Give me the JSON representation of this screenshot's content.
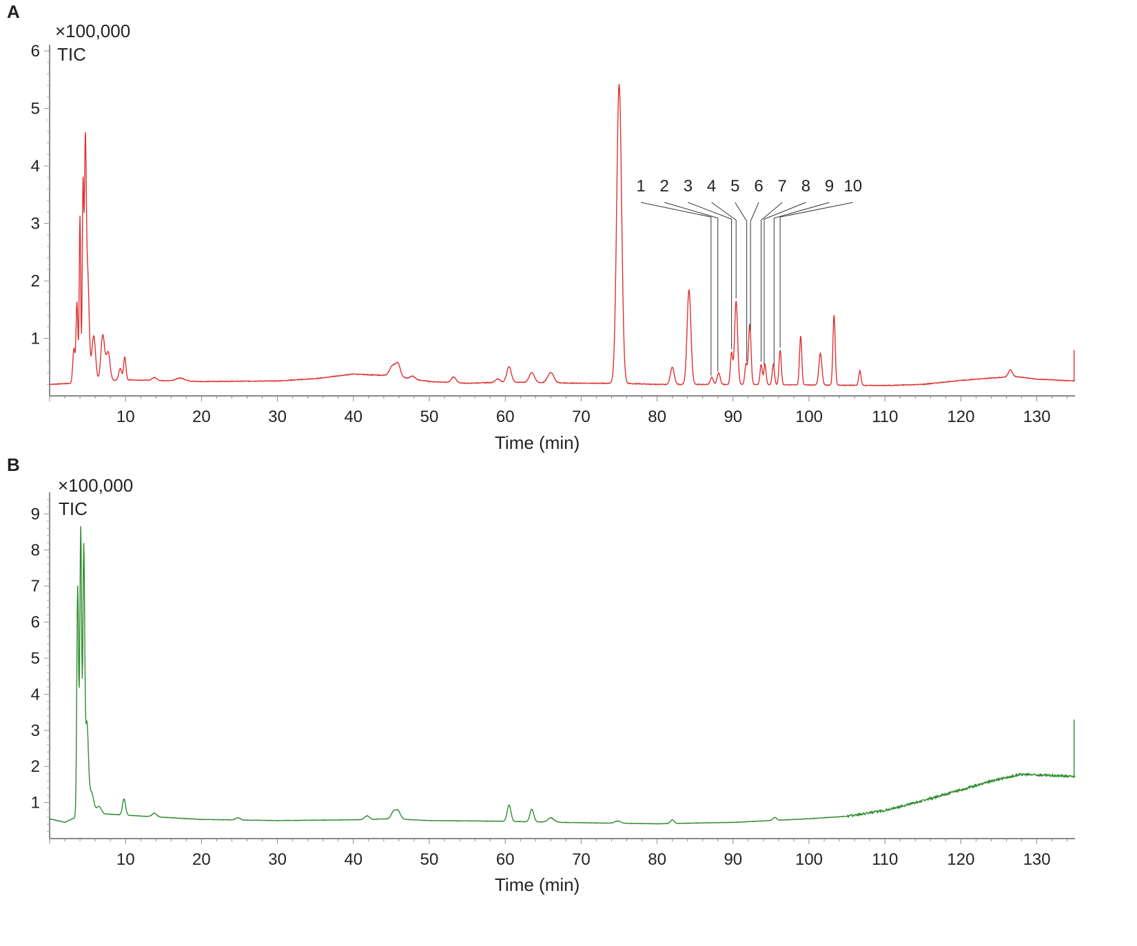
{
  "panels": [
    {
      "letter": "A",
      "scale_label": "×100,000",
      "trace_label": "TIC",
      "xlabel": "Time (min)"
    },
    {
      "letter": "B",
      "scale_label": "×100,000",
      "trace_label": "TIC",
      "xlabel": "Time (min)"
    }
  ],
  "chart_data": [
    {
      "type": "line",
      "panel": "A",
      "xlabel": "Time (min)",
      "ylabel": "×100,000",
      "xlim": [
        0,
        135
      ],
      "ylim": [
        0,
        6
      ],
      "x_ticks": [
        10,
        20,
        30,
        40,
        50,
        60,
        70,
        80,
        90,
        100,
        110,
        120,
        130
      ],
      "y_ticks": [
        1,
        2,
        3,
        4,
        5,
        6
      ],
      "grid": false,
      "color": "#e03030",
      "series": [
        {
          "baseline": [
            [
              0,
              0.2
            ],
            [
              3,
              0.22
            ],
            [
              10,
              0.28
            ],
            [
              20,
              0.25
            ],
            [
              30,
              0.26
            ],
            [
              35,
              0.3
            ],
            [
              40,
              0.38
            ],
            [
              45,
              0.35
            ],
            [
              50,
              0.25
            ],
            [
              55,
              0.22
            ],
            [
              60,
              0.24
            ],
            [
              70,
              0.22
            ],
            [
              75,
              0.22
            ],
            [
              80,
              0.2
            ],
            [
              90,
              0.2
            ],
            [
              100,
              0.19
            ],
            [
              110,
              0.18
            ],
            [
              115,
              0.2
            ],
            [
              120,
              0.27
            ],
            [
              127,
              0.34
            ],
            [
              130,
              0.29
            ],
            [
              135,
              0.26
            ]
          ],
          "peaks": [
            [
              3.2,
              0.6,
              0.15
            ],
            [
              3.6,
              1.4,
              0.12
            ],
            [
              4.0,
              2.9,
              0.1
            ],
            [
              4.4,
              3.4,
              0.1
            ],
            [
              4.7,
              3.7,
              0.12
            ],
            [
              5.0,
              1.9,
              0.2
            ],
            [
              5.8,
              0.8,
              0.25
            ],
            [
              7.0,
              0.8,
              0.25
            ],
            [
              7.7,
              0.5,
              0.25
            ],
            [
              9.3,
              0.2,
              0.2
            ],
            [
              9.9,
              0.4,
              0.15
            ],
            [
              13.8,
              0.05,
              0.3
            ],
            [
              17.2,
              0.05,
              0.6
            ],
            [
              45.2,
              0.18,
              0.4
            ],
            [
              45.9,
              0.2,
              0.3
            ],
            [
              47.8,
              0.05,
              0.3
            ],
            [
              53.2,
              0.1,
              0.3
            ],
            [
              59.0,
              0.06,
              0.3
            ],
            [
              60.5,
              0.27,
              0.3
            ],
            [
              63.5,
              0.17,
              0.35
            ],
            [
              66.0,
              0.18,
              0.4
            ],
            [
              75.0,
              5.2,
              0.32
            ],
            [
              82.0,
              0.3,
              0.25
            ],
            [
              84.2,
              1.65,
              0.25
            ],
            [
              87.2,
              0.12,
              0.2
            ],
            [
              88.1,
              0.2,
              0.2
            ],
            [
              89.8,
              0.55,
              0.15
            ],
            [
              90.4,
              1.45,
              0.2
            ],
            [
              91.7,
              0.35,
              0.15
            ],
            [
              92.2,
              1.05,
              0.17
            ],
            [
              93.7,
              0.35,
              0.15
            ],
            [
              94.2,
              0.35,
              0.15
            ],
            [
              95.3,
              0.35,
              0.15
            ],
            [
              96.2,
              0.6,
              0.15
            ],
            [
              98.9,
              0.85,
              0.15
            ],
            [
              101.5,
              0.55,
              0.2
            ],
            [
              103.3,
              1.22,
              0.15
            ],
            [
              106.7,
              0.25,
              0.15
            ],
            [
              126.5,
              0.12,
              0.25
            ]
          ]
        }
      ],
      "annotations": [
        {
          "label": "1",
          "x": 87.1
        },
        {
          "label": "2",
          "x": 88.0
        },
        {
          "label": "3",
          "x": 89.8
        },
        {
          "label": "4",
          "x": 90.4
        },
        {
          "label": "5",
          "x": 91.8
        },
        {
          "label": "6",
          "x": 92.3
        },
        {
          "label": "7",
          "x": 93.7
        },
        {
          "label": "8",
          "x": 94.1
        },
        {
          "label": "9",
          "x": 95.4
        },
        {
          "label": "10",
          "x": 96.2
        }
      ]
    },
    {
      "type": "line",
      "panel": "B",
      "xlabel": "Time (min)",
      "ylabel": "×100,000",
      "xlim": [
        0,
        135
      ],
      "ylim": [
        0,
        9.5
      ],
      "x_ticks": [
        10,
        20,
        30,
        40,
        50,
        60,
        70,
        80,
        90,
        100,
        110,
        120,
        130
      ],
      "y_ticks": [
        1,
        2,
        3,
        4,
        5,
        6,
        7,
        8,
        9
      ],
      "grid": false,
      "color": "#2e8b2e",
      "series": [
        {
          "baseline": [
            [
              0,
              0.55
            ],
            [
              2,
              0.45
            ],
            [
              3,
              0.55
            ],
            [
              6,
              0.7
            ],
            [
              10,
              0.65
            ],
            [
              20,
              0.53
            ],
            [
              30,
              0.5
            ],
            [
              40,
              0.52
            ],
            [
              45,
              0.55
            ],
            [
              50,
              0.5
            ],
            [
              60,
              0.48
            ],
            [
              70,
              0.44
            ],
            [
              80,
              0.41
            ],
            [
              90,
              0.45
            ],
            [
              100,
              0.55
            ],
            [
              105,
              0.62
            ],
            [
              110,
              0.78
            ],
            [
              115,
              1.05
            ],
            [
              120,
              1.35
            ],
            [
              125,
              1.65
            ],
            [
              128,
              1.78
            ],
            [
              135,
              1.72
            ]
          ],
          "peaks": [
            [
              3.7,
              6.4,
              0.12
            ],
            [
              4.1,
              8.0,
              0.12
            ],
            [
              4.5,
              7.2,
              0.12
            ],
            [
              4.9,
              2.5,
              0.2
            ],
            [
              5.5,
              0.6,
              0.3
            ],
            [
              6.5,
              0.2,
              0.3
            ],
            [
              9.8,
              0.45,
              0.2
            ],
            [
              13.8,
              0.1,
              0.3
            ],
            [
              24.8,
              0.06,
              0.3
            ],
            [
              41.8,
              0.1,
              0.3
            ],
            [
              45.3,
              0.2,
              0.3
            ],
            [
              45.9,
              0.22,
              0.3
            ],
            [
              60.5,
              0.45,
              0.25
            ],
            [
              63.5,
              0.35,
              0.25
            ],
            [
              66.0,
              0.12,
              0.4
            ],
            [
              74.8,
              0.06,
              0.4
            ],
            [
              82.0,
              0.1,
              0.25
            ],
            [
              95.5,
              0.08,
              0.25
            ]
          ]
        }
      ]
    }
  ]
}
